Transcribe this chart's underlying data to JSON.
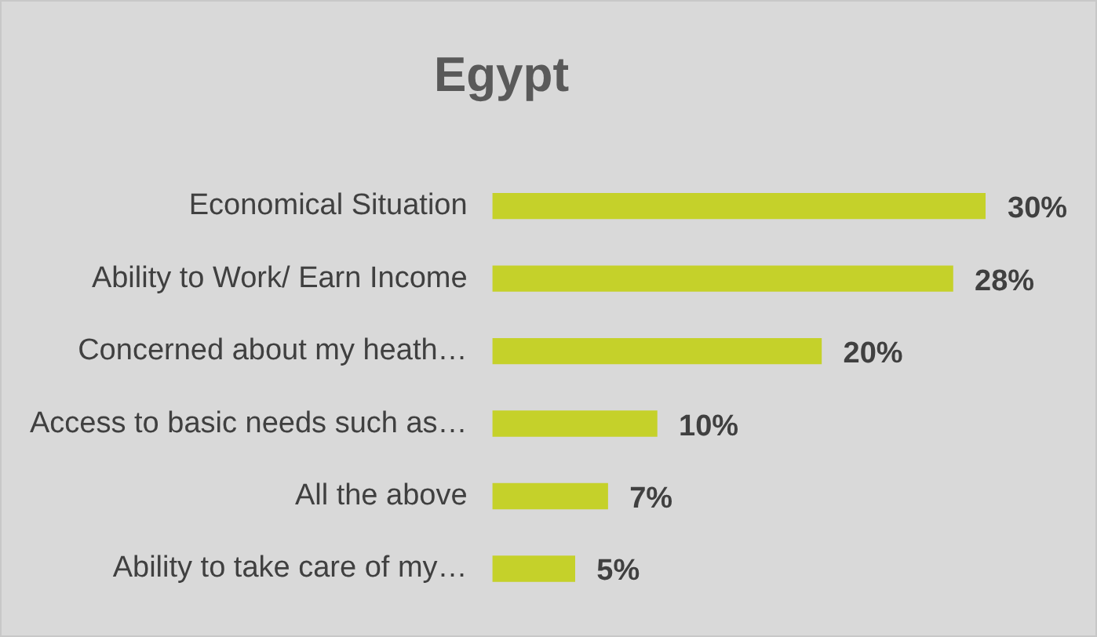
{
  "chart_data": {
    "type": "bar",
    "title": "Egypt",
    "orientation": "horizontal",
    "categories": [
      "Economical Situation",
      "Ability to Work/ Earn Income",
      "Concerned about my heath…",
      "Access to basic needs such as…",
      "All the above",
      "Ability to take care of my…"
    ],
    "values": [
      30,
      28,
      20,
      10,
      7,
      5
    ],
    "color": "#c5d12a",
    "value_labels": [
      "30%",
      "28%",
      "20%",
      "10%",
      "7%",
      "5%"
    ],
    "tick_labels": "y",
    "legend": false
  }
}
